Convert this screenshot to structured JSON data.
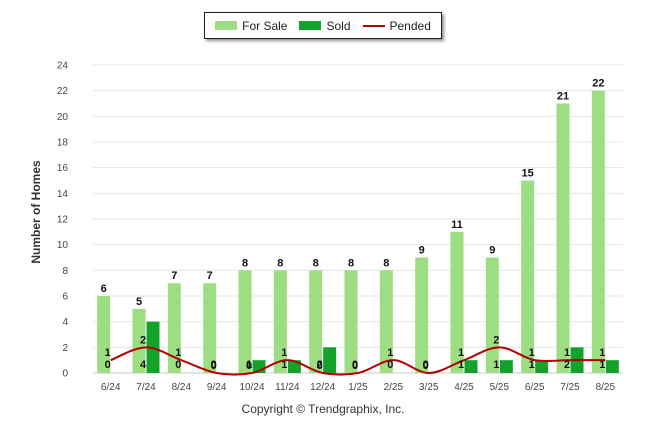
{
  "chart_data": {
    "type": "bar",
    "ylabel": "Number of Homes",
    "xlabel": "",
    "ylim": [
      0,
      24
    ],
    "yticks": [
      0,
      2,
      4,
      6,
      8,
      10,
      12,
      14,
      16,
      18,
      20,
      22,
      24
    ],
    "grid": true,
    "legend_position": "top-center",
    "categories": [
      "6/24",
      "7/24",
      "8/24",
      "9/24",
      "10/24",
      "11/24",
      "12/24",
      "1/25",
      "2/25",
      "3/25",
      "4/25",
      "5/25",
      "6/25",
      "7/25",
      "8/25"
    ],
    "series": [
      {
        "name": "For Sale",
        "kind": "bar",
        "color": "#9ede83",
        "values": [
          6,
          5,
          7,
          7,
          8,
          8,
          8,
          8,
          8,
          9,
          11,
          9,
          15,
          21,
          22
        ]
      },
      {
        "name": "Sold",
        "kind": "bar",
        "color": "#13a32b",
        "values": [
          0,
          4,
          0,
          0,
          1,
          1,
          2,
          0,
          0,
          0,
          1,
          1,
          1,
          2,
          1
        ]
      },
      {
        "name": "Pended",
        "kind": "line",
        "color": "#b30000",
        "values": [
          1,
          2,
          1,
          0,
          0,
          1,
          0,
          0,
          1,
          0,
          1,
          2,
          1,
          1,
          1
        ]
      }
    ]
  },
  "legend": {
    "for_sale": "For Sale",
    "sold": "Sold",
    "pended": "Pended",
    "for_sale_color": "#9ede83",
    "sold_color": "#13a32b",
    "pended_color": "#b30000"
  },
  "copyright": "Copyright © Trendgraphix, Inc."
}
